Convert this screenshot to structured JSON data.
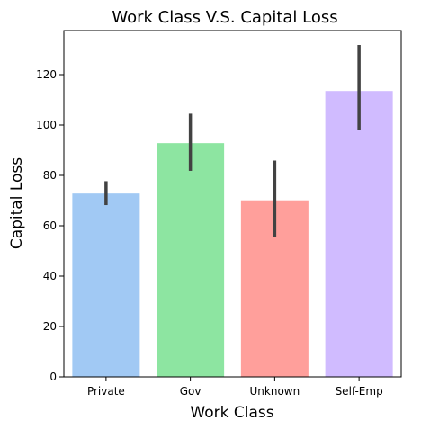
{
  "chart_data": {
    "type": "bar",
    "title": "Work Class V.S. Capital Loss",
    "xlabel": "Work Class",
    "ylabel": "Capital Loss",
    "categories": [
      "Private",
      "Gov",
      "Unknown",
      "Self-Emp"
    ],
    "values": [
      72.8,
      92.8,
      70.1,
      113.5
    ],
    "error_bars": [
      {
        "low": 68.2,
        "high": 77.7
      },
      {
        "low": 81.8,
        "high": 104.5
      },
      {
        "low": 55.6,
        "high": 85.9
      },
      {
        "low": 97.9,
        "high": 131.8
      }
    ],
    "ylim": [
      0,
      137.5
    ],
    "yticks": [
      0,
      20,
      40,
      60,
      80,
      100,
      120
    ],
    "grid": false,
    "legend": "none",
    "colors": [
      "#a1c9f4",
      "#8de5a1",
      "#ff9f9b",
      "#d0bbff"
    ],
    "error_color": "#424242"
  }
}
